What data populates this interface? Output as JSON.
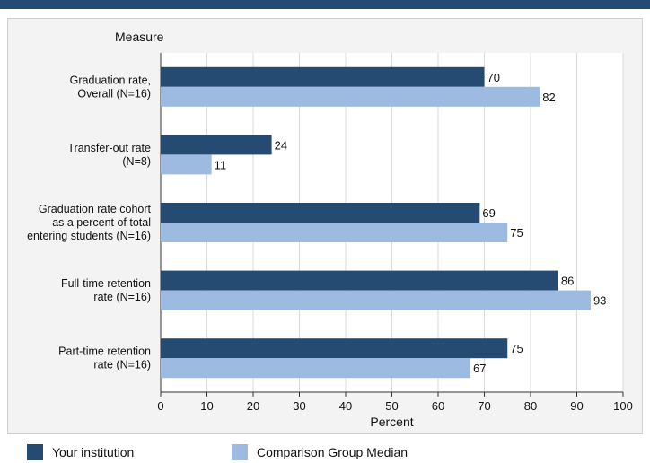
{
  "chart_data": {
    "type": "bar",
    "orientation": "horizontal",
    "title": "",
    "category_axis_label": "Measure",
    "xlabel": "Percent",
    "xlim": [
      0,
      100
    ],
    "x_ticks": [
      0,
      10,
      20,
      30,
      40,
      50,
      60,
      70,
      80,
      90,
      100
    ],
    "categories": [
      [
        "Graduation rate,",
        "Overall (N=16)"
      ],
      [
        "Transfer-out rate",
        "(N=8)"
      ],
      [
        "Graduation rate cohort",
        "as a percent of total",
        "entering students (N=16)"
      ],
      [
        "Full-time retention",
        "rate (N=16)"
      ],
      [
        "Part-time retention",
        "rate (N=16)"
      ]
    ],
    "series": [
      {
        "name": "Your institution",
        "color": "#254b73",
        "values": [
          70,
          24,
          69,
          86,
          75
        ]
      },
      {
        "name": "Comparison Group Median",
        "color": "#9dbbe0",
        "values": [
          82,
          11,
          75,
          93,
          67
        ]
      }
    ],
    "grid": true,
    "legend_position": "bottom-left"
  }
}
